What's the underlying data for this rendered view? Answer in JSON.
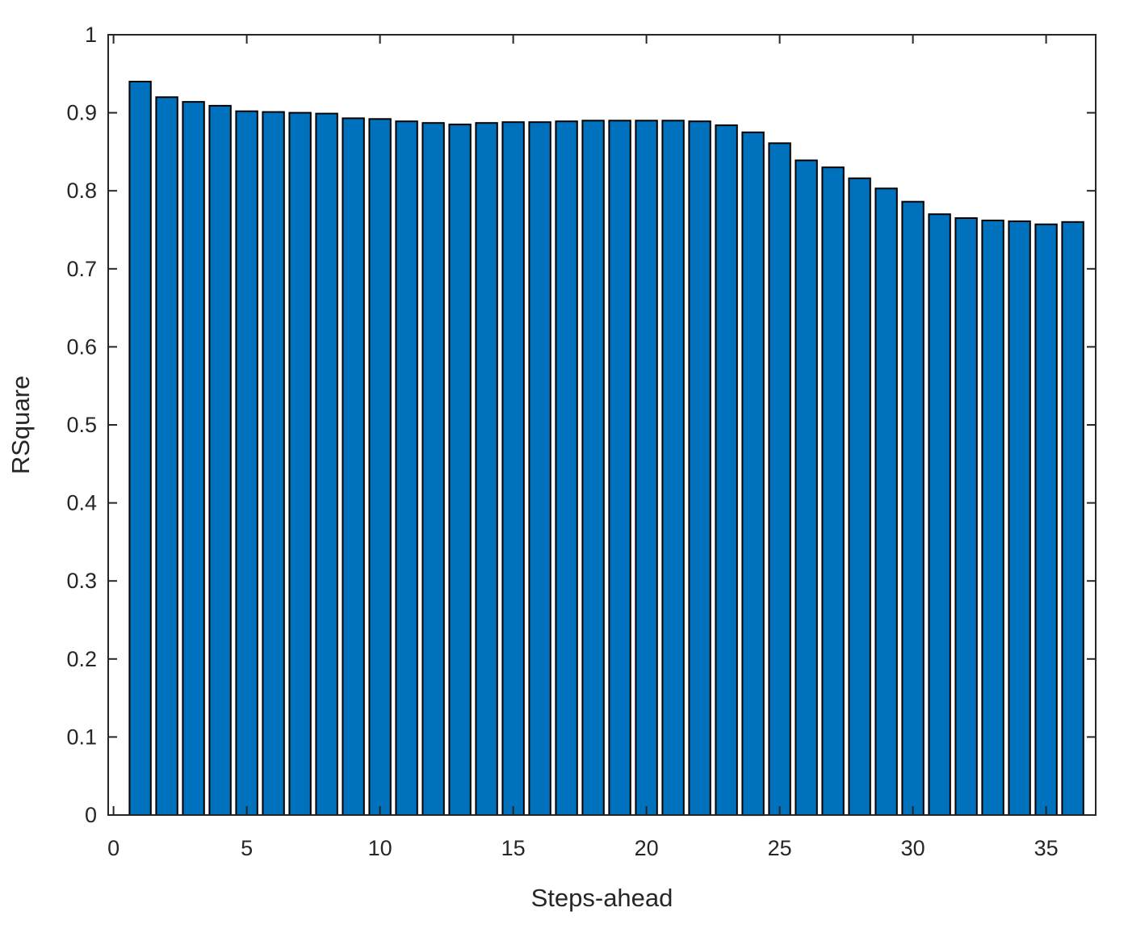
{
  "figure": {
    "background": "#FFFFFF"
  },
  "chart_data": {
    "type": "bar",
    "title": "",
    "xlabel": "Steps-ahead",
    "ylabel": "RSquare",
    "x": [
      1,
      2,
      3,
      4,
      5,
      6,
      7,
      8,
      9,
      10,
      11,
      12,
      13,
      14,
      15,
      16,
      17,
      18,
      19,
      20,
      21,
      22,
      23,
      24,
      25,
      26,
      27,
      28,
      29,
      30,
      31,
      32,
      33,
      34,
      35,
      36
    ],
    "values": [
      0.94,
      0.92,
      0.914,
      0.909,
      0.902,
      0.901,
      0.9,
      0.899,
      0.893,
      0.892,
      0.889,
      0.887,
      0.885,
      0.887,
      0.888,
      0.888,
      0.889,
      0.89,
      0.89,
      0.89,
      0.89,
      0.889,
      0.884,
      0.875,
      0.861,
      0.839,
      0.83,
      0.816,
      0.803,
      0.786,
      0.77,
      0.765,
      0.762,
      0.761,
      0.757,
      0.76
    ],
    "bar_width": 0.8,
    "bar_color": "#0072BD",
    "bar_edge_color": "#000000",
    "axis_color": "#262626",
    "text_color": "#262626",
    "background_color": "#FFFFFF",
    "xlim": [
      -0.2,
      36.86
    ],
    "ylim": [
      0,
      1
    ],
    "xticks": [
      0,
      5,
      10,
      15,
      20,
      25,
      30,
      35
    ],
    "xtick_labels": [
      "0",
      "5",
      "10",
      "15",
      "20",
      "25",
      "30",
      "35"
    ],
    "yticks": [
      0,
      0.1,
      0.2,
      0.3,
      0.4,
      0.5,
      0.6,
      0.7,
      0.8,
      0.9,
      1
    ],
    "ytick_labels": [
      "0",
      "0.1",
      "0.2",
      "0.3",
      "0.4",
      "0.5",
      "0.6",
      "0.7",
      "0.8",
      "0.9",
      "1"
    ],
    "grid": false,
    "legend": null,
    "box": true,
    "tick_direction": "in"
  }
}
